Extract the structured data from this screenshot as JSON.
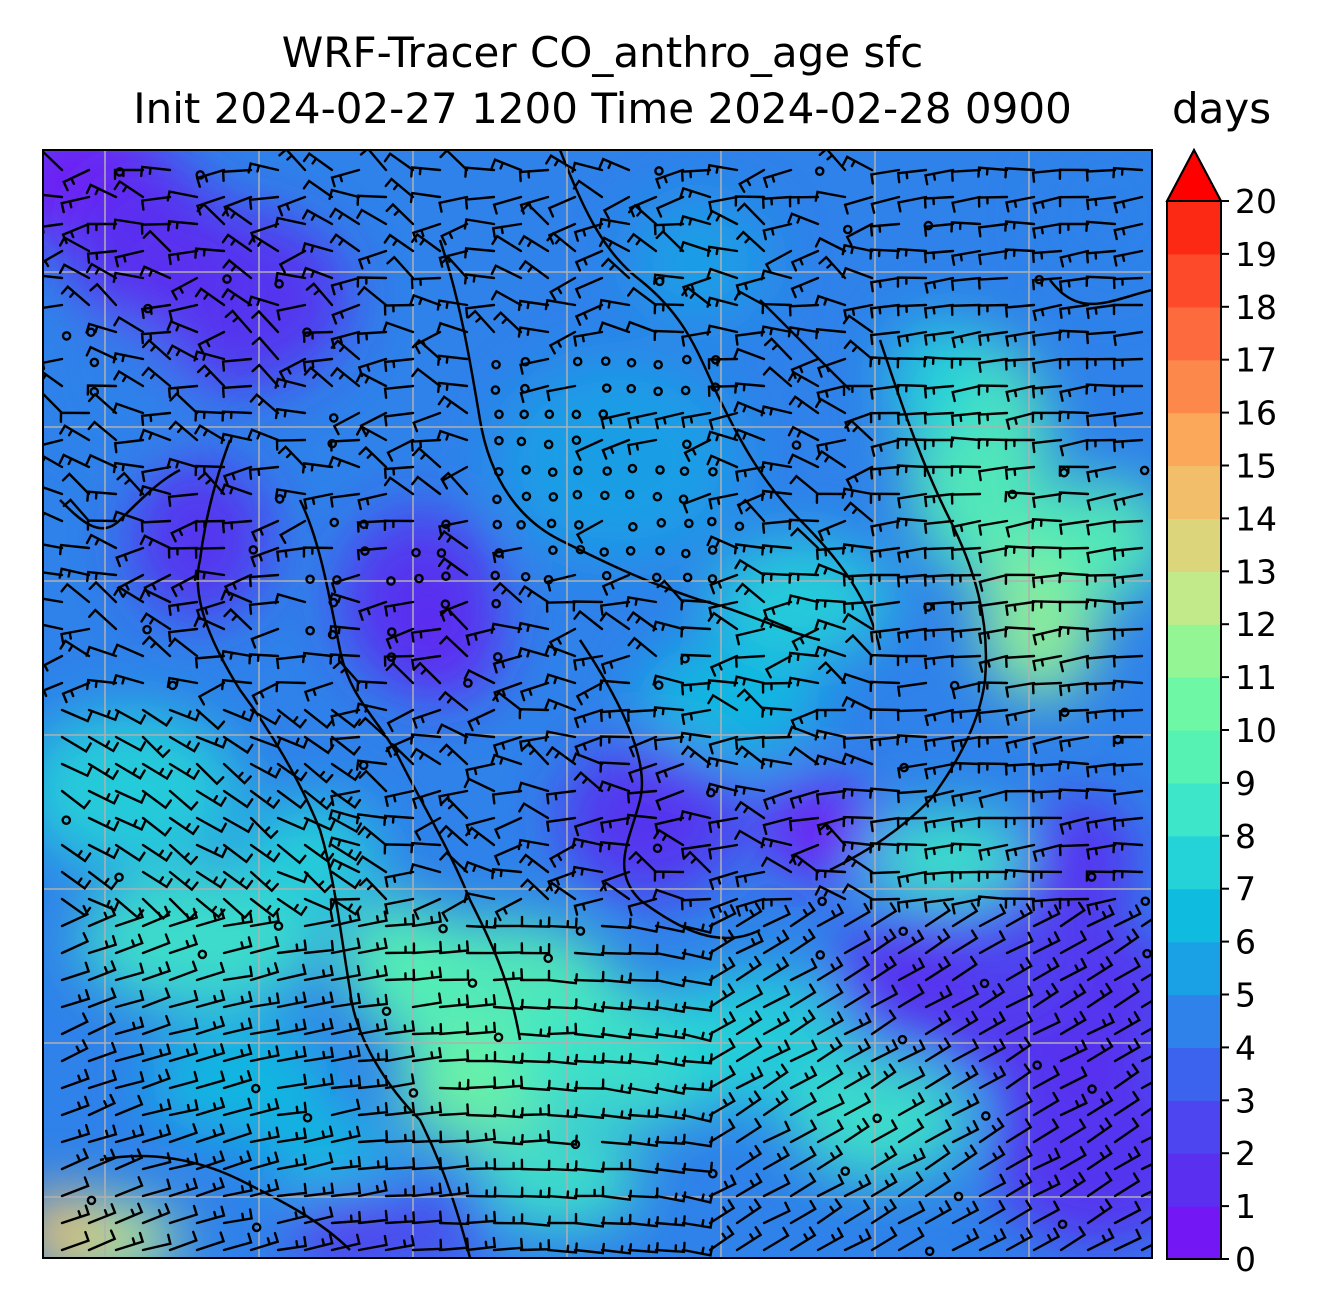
{
  "title": {
    "line1": "WRF-Tracer CO_anthro_age sfc",
    "line2": "Init 2024-02-27 1200 Time 2024-02-28 0900",
    "units": "days"
  },
  "colorbar": {
    "ticks": [
      "0",
      "1",
      "2",
      "3",
      "4",
      "5",
      "6",
      "7",
      "8",
      "9",
      "10",
      "11",
      "12",
      "13",
      "14",
      "15",
      "16",
      "17",
      "18",
      "19",
      "20"
    ],
    "colors": [
      "#7417f5",
      "#5a2ff0",
      "#4c45f0",
      "#3c63ee",
      "#2f82ea",
      "#1aa1e5",
      "#10bbe0",
      "#24d3d8",
      "#3de6c8",
      "#55f2b4",
      "#6ef7a4",
      "#94f594",
      "#c2ea8a",
      "#dcd57c",
      "#f2be6a",
      "#fba85a",
      "#fc884c",
      "#fc6a3e",
      "#fc4a2a",
      "#fc2a14"
    ],
    "extend_color": "#ff0000"
  },
  "map": {
    "grid": "on",
    "field": "CO_anthro_age",
    "level": "sfc",
    "overlay": "wind barbs",
    "coastline_color": "#000000",
    "gridline_color": "#b0b0b0"
  }
}
